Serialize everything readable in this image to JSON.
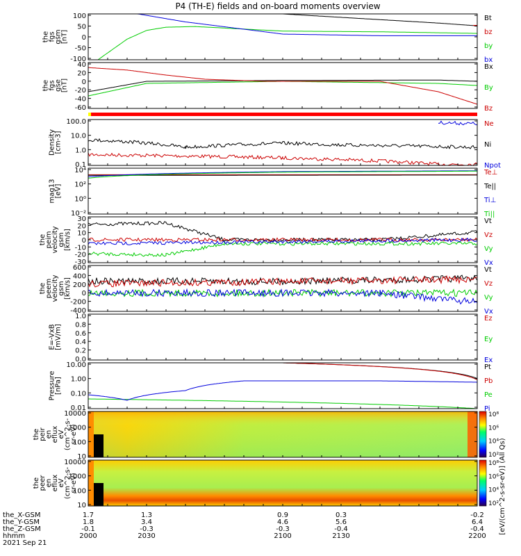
{
  "title": "P4 (TH-E) fields and on-board moments overview",
  "colors": {
    "black": "#000000",
    "red": "#cc0000",
    "green": "#00cc00",
    "blue": "#0000dd",
    "bar_red": "#ff0000",
    "bar_yellow": "#ffff00"
  },
  "chart_data": [
    {
      "type": "line",
      "panel": "fgs_gsm",
      "ylabel": [
        "the",
        "fgs",
        "gsm",
        "[nT]"
      ],
      "ylim": [
        -100,
        100
      ],
      "yticks": [
        "100",
        "50",
        "0",
        "-50",
        "-100"
      ],
      "series": [
        {
          "name": "Bt",
          "color": "black",
          "points": [
            [
              2000,
              130
            ],
            [
              2100,
              100
            ],
            [
              2180,
              60
            ],
            [
              2200,
              48
            ]
          ]
        },
        {
          "name": "bz",
          "color": "red",
          "points": [
            [
              2200,
              50
            ]
          ]
        },
        {
          "name": "by",
          "color": "green",
          "points": [
            [
              2005,
              -100
            ],
            [
              2020,
              -10
            ],
            [
              2030,
              28
            ],
            [
              2040,
              42
            ],
            [
              2055,
              45
            ],
            [
              2100,
              25
            ],
            [
              2150,
              22
            ],
            [
              2200,
              15
            ]
          ]
        },
        {
          "name": "bx",
          "color": "blue",
          "points": [
            [
              2020,
              108
            ],
            [
              2050,
              65
            ],
            [
              2100,
              12
            ],
            [
              2150,
              5
            ],
            [
              2200,
              5
            ]
          ]
        }
      ]
    },
    {
      "type": "line",
      "panel": "fgs_gse",
      "ylabel": [
        "the",
        "fgs",
        "gse",
        "[nT]"
      ],
      "ylim": [
        -70,
        40
      ],
      "yticks": [
        "40",
        "20",
        "0",
        "-20",
        "-40",
        "-60"
      ],
      "series": [
        {
          "name": "Bx",
          "color": "black",
          "points": [
            [
              2000,
              -30
            ],
            [
              2030,
              -5
            ],
            [
              2100,
              -3
            ],
            [
              2180,
              -2
            ],
            [
              2200,
              -5
            ]
          ]
        },
        {
          "name": "By",
          "color": "green",
          "points": [
            [
              2000,
              -40
            ],
            [
              2030,
              -10
            ],
            [
              2100,
              -5
            ],
            [
              2180,
              -10
            ],
            [
              2200,
              -15
            ]
          ]
        },
        {
          "name": "Bz",
          "color": "red",
          "points": [
            [
              2000,
              28
            ],
            [
              2020,
              22
            ],
            [
              2040,
              10
            ],
            [
              2060,
              0
            ],
            [
              2090,
              -5
            ],
            [
              2150,
              -5
            ],
            [
              2180,
              -30
            ],
            [
              2200,
              -60
            ]
          ]
        }
      ]
    },
    {
      "type": "line",
      "panel": "density",
      "scale": "log",
      "ylabel": [
        "Density",
        "[cm-3]"
      ],
      "ylim": [
        0.1,
        200
      ],
      "yticks": [
        "100.0",
        "10.0",
        "1.0",
        "0.1"
      ],
      "series": [
        {
          "name": "Ne",
          "color": "red",
          "points": [
            [
              2000,
              0.6
            ],
            [
              2100,
              0.35
            ],
            [
              2180,
              0.12
            ],
            [
              2200,
              0.12
            ]
          ]
        },
        {
          "name": "Ni",
          "color": "black",
          "points": [
            [
              2000,
              7
            ],
            [
              2050,
              2
            ],
            [
              2100,
              4
            ],
            [
              2130,
              3
            ],
            [
              2200,
              2
            ]
          ]
        },
        {
          "name": "Npot",
          "color": "blue",
          "points": [
            [
              2180,
              120
            ],
            [
              2200,
              100
            ]
          ]
        }
      ]
    },
    {
      "type": "line",
      "panel": "temperature",
      "scale": "log",
      "ylabel": [
        "mag13",
        "[eV]"
      ],
      "ylim": [
        0.001,
        10000
      ],
      "yticks": [
        "10⁴",
        "10²",
        "10⁰",
        "10⁻²"
      ],
      "series": [
        {
          "name": "Te⊥",
          "color": "red",
          "points": [
            [
              2000,
              1000
            ],
            [
              2200,
              1000
            ]
          ]
        },
        {
          "name": "Te||",
          "color": "black",
          "points": [
            [
              2000,
              800
            ],
            [
              2200,
              900
            ]
          ]
        },
        {
          "name": "Ti⊥",
          "color": "blue",
          "points": [
            [
              2000,
              500
            ],
            [
              2100,
              3000
            ],
            [
              2200,
              4000
            ]
          ]
        },
        {
          "name": "Ti||",
          "color": "green",
          "points": [
            [
              2000,
              300
            ],
            [
              2100,
              2500
            ],
            [
              2200,
              3500
            ]
          ]
        }
      ]
    },
    {
      "type": "line",
      "panel": "peim_velocity",
      "ylabel": [
        "the",
        "peim",
        "velocity",
        "gsm",
        "[km/s]"
      ],
      "ylim": [
        -30,
        30
      ],
      "yticks": [
        "30",
        "20",
        "10",
        "0",
        "-10",
        "-20",
        "-30"
      ],
      "series": [
        {
          "name": "Vt",
          "color": "black",
          "points": [
            [
              2000,
              20
            ],
            [
              2040,
              22
            ],
            [
              2070,
              0
            ],
            [
              2150,
              0
            ],
            [
              2200,
              10
            ]
          ]
        },
        {
          "name": "Vz",
          "color": "red",
          "points": [
            [
              2000,
              0
            ],
            [
              2200,
              0
            ]
          ]
        },
        {
          "name": "Vy",
          "color": "green",
          "points": [
            [
              2000,
              -18
            ],
            [
              2040,
              -20
            ],
            [
              2070,
              -5
            ],
            [
              2150,
              -5
            ],
            [
              2200,
              -5
            ]
          ]
        },
        {
          "name": "Vx",
          "color": "blue",
          "points": [
            [
              2000,
              -5
            ],
            [
              2200,
              0
            ]
          ]
        }
      ]
    },
    {
      "type": "line",
      "panel": "peem_velocity",
      "ylabel": [
        "the",
        "peem",
        "velocity",
        "gsm",
        "[km/s]"
      ],
      "ylim": [
        -400,
        600
      ],
      "yticks": [
        "600",
        "400",
        "200",
        "0",
        "-200",
        "-400"
      ],
      "series": [
        {
          "name": "Vt",
          "color": "black",
          "points": [
            [
              2000,
              260
            ],
            [
              2100,
              250
            ],
            [
              2200,
              320
            ]
          ]
        },
        {
          "name": "Vz",
          "color": "red",
          "points": [
            [
              2000,
              200
            ],
            [
              2200,
              300
            ]
          ]
        },
        {
          "name": "Vy",
          "color": "green",
          "points": [
            [
              2000,
              0
            ],
            [
              2200,
              0
            ]
          ]
        },
        {
          "name": "Vx",
          "color": "blue",
          "points": [
            [
              2000,
              0
            ],
            [
              2150,
              0
            ],
            [
              2200,
              -200
            ]
          ]
        }
      ]
    },
    {
      "type": "line",
      "panel": "efield",
      "ylabel": [
        "E=-VxB",
        "[mV/m]"
      ],
      "ylim": [
        0,
        1
      ],
      "yticks": [
        "1.0",
        "0.8",
        "0.6",
        "0.4",
        "0.2",
        "0.0"
      ],
      "series": [
        {
          "name": "Ez",
          "color": "red",
          "points": []
        },
        {
          "name": "Ey",
          "color": "green",
          "points": []
        },
        {
          "name": "Ex",
          "color": "blue",
          "points": []
        }
      ]
    },
    {
      "type": "line",
      "panel": "pressure",
      "scale": "log",
      "ylabel": [
        "Pressure",
        "[nPa]"
      ],
      "ylim": [
        0.01,
        20
      ],
      "yticks": [
        "10.00",
        "1.00",
        "0.10",
        "0.01"
      ],
      "series": [
        {
          "name": "Pt",
          "color": "black",
          "points": [
            [
              2100,
              20
            ],
            [
              2200,
              1.5
            ]
          ]
        },
        {
          "name": "Pb",
          "color": "red",
          "points": [
            [
              2100,
              20
            ],
            [
              2200,
              1.2
            ]
          ]
        },
        {
          "name": "Pe",
          "color": "green",
          "points": [
            [
              2000,
              0.05
            ],
            [
              2100,
              0.03
            ],
            [
              2200,
              0.01
            ]
          ]
        },
        {
          "name": "Pi",
          "color": "blue",
          "points": [
            [
              2000,
              0.1
            ],
            [
              2020,
              0.04
            ],
            [
              2050,
              0.2
            ],
            [
              2080,
              1
            ],
            [
              2150,
              1
            ],
            [
              2200,
              0.8
            ]
          ]
        }
      ]
    },
    {
      "type": "heatmap",
      "panel": "peir_spectrogram",
      "ylabel": [
        "the",
        "peir",
        "en",
        "eflux",
        "eV",
        "(cm^2-s-",
        "sr-eV)"
      ],
      "yticks": [
        "10000",
        "1000",
        "100",
        "10"
      ],
      "colorbar_ticks": [
        "10⁸",
        "10⁶",
        "10⁴",
        "10²"
      ]
    },
    {
      "type": "heatmap",
      "panel": "peer_spectrogram",
      "ylabel": [
        "the",
        "peer",
        "en",
        "eflux",
        "eV",
        "(cm^2-s-",
        "sr-eV)"
      ],
      "yticks": [
        "10000",
        "1000",
        "100",
        "10"
      ],
      "colorbar_ticks": [
        "10⁸",
        "10⁶",
        "10⁴",
        "10²"
      ]
    }
  ],
  "colorbar_label": "[eV/(cm^2-s-sr-eV)] (All Qs)",
  "xaxis": {
    "row_labels": [
      "the_X-GSM",
      "the_Y-GSM",
      "the_Z-GSM",
      "hhmm",
      "2021 Sep 21"
    ],
    "ticks": [
      {
        "x": 2000,
        "values": [
          "1.7",
          "1.8",
          "-0.1",
          "2000"
        ]
      },
      {
        "x": 2030,
        "values": [
          "1.3",
          "3.4",
          "-0.3",
          "2030"
        ]
      },
      {
        "x": 2100,
        "values": [
          "0.9",
          "4.6",
          "-0.3",
          "2100"
        ]
      },
      {
        "x": 2130,
        "values": [
          "0.3",
          "5.6",
          "-0.4",
          "2130"
        ]
      },
      {
        "x": 2200,
        "values": [
          "-0.2",
          "6.4",
          "-0.4",
          "2200"
        ]
      }
    ]
  }
}
